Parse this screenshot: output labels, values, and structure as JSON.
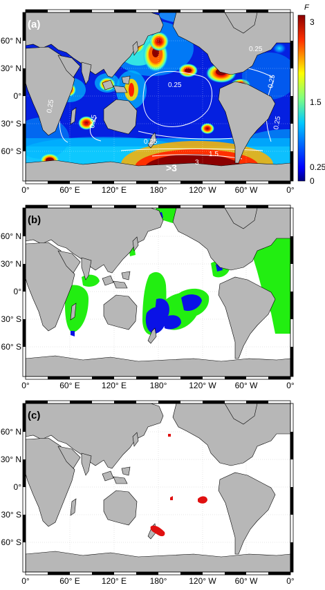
{
  "panels": [
    {
      "id": "a",
      "label": "(a)"
    },
    {
      "id": "b",
      "label": "(b)"
    },
    {
      "id": "c",
      "label": "(c)"
    }
  ],
  "lat_ticks": [
    "60° N",
    "30° N",
    "0°",
    "30° S",
    "60° S"
  ],
  "lon_ticks": [
    "0°",
    "60° E",
    "120° E",
    "180°",
    "120° W",
    "60° W",
    "0°"
  ],
  "colorbar": {
    "title": "F",
    "ticks": [
      "3",
      "1.5",
      "0.25",
      "0"
    ]
  },
  "annotations": {
    "contour_025": "0.25",
    "contour_15": "1.5",
    "contour_3": "3",
    "max_label": ">3"
  },
  "colors": {
    "land": "#b7b7b7",
    "green": "#22ee11",
    "blue": "#0a12e6",
    "red": "#e01010"
  }
}
